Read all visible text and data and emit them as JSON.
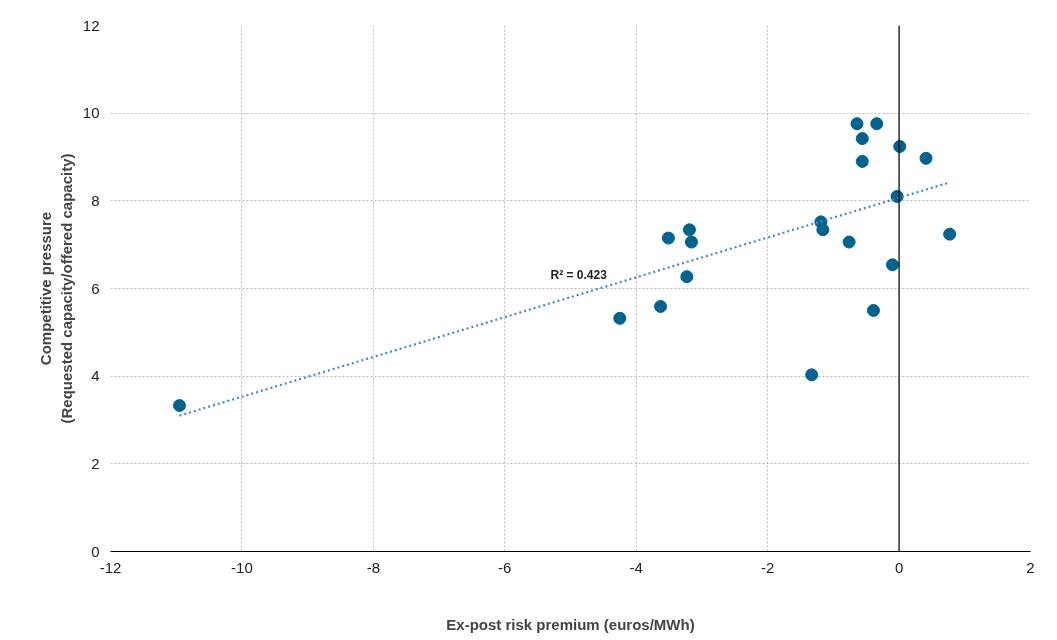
{
  "chart_data": {
    "type": "scatter",
    "xlabel": "Ex-post risk premium (euros/MWh)",
    "ylabel": "Competitive pressure\n(Requested capacity/offered capacity)",
    "xlim": [
      -12,
      2
    ],
    "ylim": [
      0,
      12
    ],
    "xticks": [
      -12,
      -10,
      -8,
      -6,
      -4,
      -2,
      0,
      2
    ],
    "yticks": [
      0,
      2,
      4,
      6,
      8,
      10,
      12
    ],
    "grid": true,
    "marker": "circle",
    "series": [
      {
        "color": "#00628f",
        "x": [
          -10.95,
          -4.25,
          -3.63,
          -3.51,
          -3.19,
          -3.16,
          -3.23,
          -1.33,
          -1.19,
          -1.16,
          -0.76,
          -0.64,
          -0.34,
          -0.56,
          -0.56,
          0.01,
          0.41,
          -0.03,
          -0.1,
          -0.39,
          0.77
        ],
        "values": [
          3.33,
          5.32,
          5.59,
          7.15,
          7.34,
          7.06,
          6.27,
          4.03,
          7.52,
          7.34,
          7.06,
          9.76,
          9.76,
          9.42,
          8.9,
          9.24,
          8.97,
          8.1,
          6.54,
          5.5,
          7.24
        ]
      },
      {
        "type": "line",
        "color": "#4a86c5",
        "line_style": "dotted",
        "marker": "none",
        "x": [
          -10.95,
          0.77
        ],
        "values": [
          3.1,
          8.42
        ]
      }
    ],
    "ref_lines": [
      {
        "axis": "x",
        "value": 0,
        "color": "#000000",
        "line_style": "solid"
      }
    ],
    "annotations": [
      "R² = 0.423"
    ]
  }
}
